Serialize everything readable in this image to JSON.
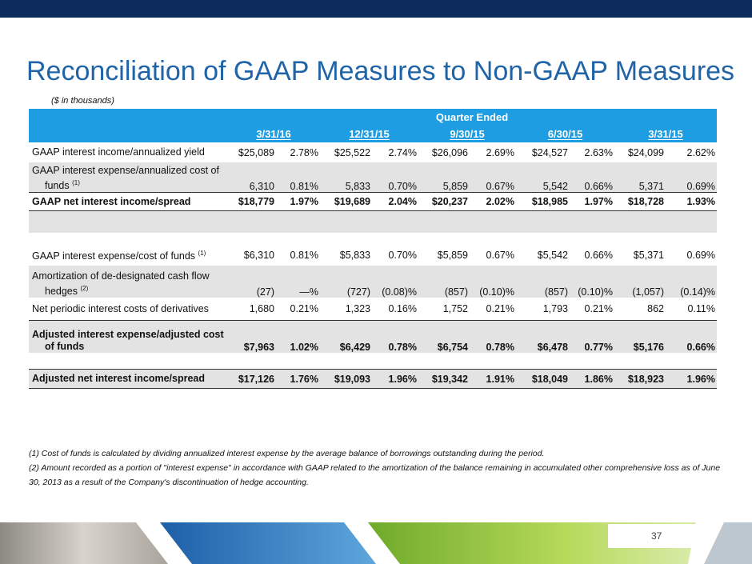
{
  "header": {
    "title": "Reconciliation of GAAP Measures to Non-GAAP Measures",
    "subtitle": "($ in thousands)"
  },
  "table": {
    "group_header": "Quarter Ended",
    "columns": [
      "3/31/16",
      "12/31/15",
      "9/30/15",
      "6/30/15",
      "3/31/15"
    ],
    "rows": [
      {
        "label": "GAAP interest income/annualized yield",
        "cells": [
          "$25,089",
          "2.78%",
          "$25,522",
          "2.74%",
          "$26,096",
          "2.69%",
          "$24,527",
          "2.63%",
          "$24,099",
          "2.62%"
        ]
      },
      {
        "label": "GAAP interest expense/annualized cost of funds",
        "note": "(1)",
        "cells": [
          "6,310",
          "0.81%",
          "5,833",
          "0.70%",
          "5,859",
          "0.67%",
          "5,542",
          "0.66%",
          "5,371",
          "0.69%"
        ]
      },
      {
        "label": "GAAP net interest income/spread",
        "cells": [
          "$18,779",
          "1.97%",
          "$19,689",
          "2.04%",
          "$20,237",
          "2.02%",
          "$18,985",
          "1.97%",
          "$18,728",
          "1.93%"
        ]
      },
      {
        "label": "GAAP interest expense/cost of funds",
        "note": "(1)",
        "cells": [
          "$6,310",
          "0.81%",
          "$5,833",
          "0.70%",
          "$5,859",
          "0.67%",
          "$5,542",
          "0.66%",
          "$5,371",
          "0.69%"
        ]
      },
      {
        "label": "Amortization of de-designated cash flow hedges",
        "note": "(2)",
        "cells": [
          "(27)",
          "—%",
          "(727)",
          "(0.08)%",
          "(857)",
          "(0.10)%",
          "(857)",
          "(0.10)%",
          "(1,057)",
          "(0.14)%"
        ]
      },
      {
        "label": "Net periodic interest costs of derivatives",
        "cells": [
          "1,680",
          "0.21%",
          "1,323",
          "0.16%",
          "1,752",
          "0.21%",
          "1,793",
          "0.21%",
          "862",
          "0.11%"
        ]
      },
      {
        "label": "Adjusted interest expense/adjusted cost of funds",
        "cells": [
          "$7,963",
          "1.02%",
          "$6,429",
          "0.78%",
          "$6,754",
          "0.78%",
          "$6,478",
          "0.77%",
          "$5,176",
          "0.66%"
        ]
      },
      {
        "label": "Adjusted net interest income/spread",
        "cells": [
          "$17,126",
          "1.76%",
          "$19,093",
          "1.96%",
          "$19,342",
          "1.91%",
          "$18,049",
          "1.86%",
          "$18,923",
          "1.96%"
        ]
      }
    ]
  },
  "footnotes": [
    "(1) Cost of funds is calculated by dividing annualized interest expense by the average balance of borrowings outstanding during the period.",
    "(2)  Amount recorded as a portion of \"interest expense\" in accordance with GAAP related to the amortization of the balance remaining in accumulated other comprehensive loss as of June 30, 2013 as a result of the Company's discontinuation of hedge accounting."
  ],
  "page_number": "37"
}
